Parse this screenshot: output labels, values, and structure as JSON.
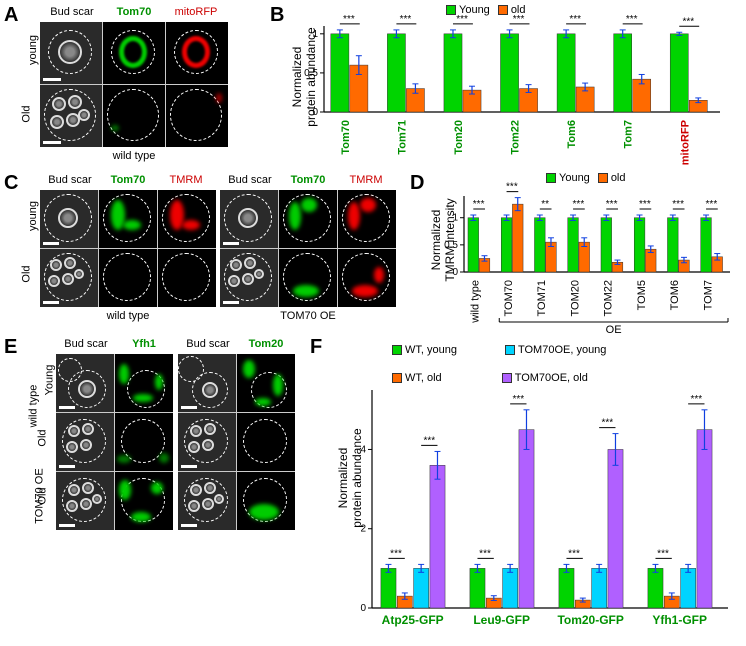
{
  "colors": {
    "young": "#00d400",
    "old": "#ff6a00",
    "t70y": "#00d4ff",
    "t70o": "#b060ff",
    "error": "#1040e0",
    "green_text": "#009000",
    "red_text": "#cc0000",
    "axis": "#000000"
  },
  "panelA": {
    "label": "A",
    "headers": [
      "Bud scar",
      "Tom70",
      "mitoRFP"
    ],
    "header_colors": [
      "#000000",
      "#009000",
      "#cc0000"
    ],
    "rows": [
      "young",
      "Old"
    ],
    "under": "wild type"
  },
  "panelB": {
    "label": "B",
    "ylabel": "Normalized\nprotein abundance",
    "legend": [
      {
        "label": "Young",
        "color": "young"
      },
      {
        "label": "old",
        "color": "old"
      }
    ],
    "ylim": [
      0,
      1.1
    ],
    "ytick_step": 0.5,
    "categories": [
      "Tom70",
      "Tom71",
      "Tom20",
      "Tom22",
      "Tom6",
      "Tom7",
      "mitoRFP"
    ],
    "cat_colors": [
      "#009000",
      "#009000",
      "#009000",
      "#009000",
      "#009000",
      "#009000",
      "#cc0000"
    ],
    "young": [
      1.0,
      1.0,
      1.0,
      1.0,
      1.0,
      1.0,
      1.0
    ],
    "young_err": [
      0.05,
      0.05,
      0.05,
      0.05,
      0.05,
      0.05,
      0.02
    ],
    "old": [
      0.6,
      0.3,
      0.28,
      0.3,
      0.32,
      0.42,
      0.15
    ],
    "old_err": [
      0.12,
      0.06,
      0.05,
      0.05,
      0.05,
      0.06,
      0.03
    ],
    "sig": [
      "***",
      "***",
      "***",
      "***",
      "***",
      "***",
      "***"
    ]
  },
  "panelC": {
    "label": "C",
    "headers": [
      "Bud scar",
      "Tom70",
      "TMRM",
      "Bud scar",
      "Tom70",
      "TMRM"
    ],
    "header_colors": [
      "#000000",
      "#009000",
      "#cc0000",
      "#000000",
      "#009000",
      "#cc0000"
    ],
    "rows": [
      "young",
      "Old"
    ],
    "under": [
      "wild type",
      "TOM70 OE"
    ]
  },
  "panelD": {
    "label": "D",
    "ylabel": "Normalized\nTMRM intensity",
    "legend": [
      {
        "label": "Young",
        "color": "young"
      },
      {
        "label": "old",
        "color": "old"
      }
    ],
    "ylim": [
      0,
      1.4
    ],
    "ytick_step": 0.5,
    "categories": [
      "wild type",
      "TOM70",
      "TOM71",
      "TOM20",
      "TOM22",
      "TOM5",
      "TOM6",
      "TOM7"
    ],
    "young": [
      1.0,
      1.0,
      1.0,
      1.0,
      1.0,
      1.0,
      1.0,
      1.0
    ],
    "young_err": [
      0.05,
      0.05,
      0.05,
      0.05,
      0.05,
      0.05,
      0.05,
      0.05
    ],
    "old": [
      0.25,
      1.25,
      0.55,
      0.55,
      0.18,
      0.42,
      0.22,
      0.28
    ],
    "old_err": [
      0.05,
      0.12,
      0.08,
      0.08,
      0.04,
      0.06,
      0.05,
      0.06
    ],
    "sig": [
      "***",
      "***",
      "**",
      "***",
      "***",
      "***",
      "***",
      "***"
    ],
    "oe_label": "OE"
  },
  "panelE": {
    "label": "E",
    "headers": [
      "Bud scar",
      "Yfh1",
      "Bud scar",
      "Tom20"
    ],
    "header_colors": [
      "#000000",
      "#009000",
      "#000000",
      "#009000"
    ],
    "rows_major": [
      "wild type",
      "TOM70 OE"
    ],
    "rows_minor": [
      "Young",
      "Old",
      "Old"
    ]
  },
  "panelF": {
    "label": "F",
    "ylabel": "Normalized\nprotein abundance",
    "legend": [
      {
        "label": "WT, young",
        "color": "young"
      },
      {
        "label": "WT, old",
        "color": "old"
      },
      {
        "label": "TOM70OE, young",
        "color": "t70y"
      },
      {
        "label": "TOM70OE, old",
        "color": "t70o"
      }
    ],
    "ylim": [
      0,
      5.5
    ],
    "yticks": [
      0,
      2,
      4
    ],
    "categories": [
      "Atp25-GFP",
      "Leu9-GFP",
      "Tom20-GFP",
      "Yfh1-GFP"
    ],
    "series": {
      "wt_young": [
        1.0,
        1.0,
        1.0,
        1.0
      ],
      "wt_old": [
        0.3,
        0.25,
        0.2,
        0.3
      ],
      "oe_young": [
        1.0,
        1.0,
        1.0,
        1.0
      ],
      "oe_old": [
        3.6,
        4.5,
        4.0,
        4.5
      ]
    },
    "err": {
      "wt_young": [
        0.1,
        0.1,
        0.1,
        0.1
      ],
      "wt_old": [
        0.08,
        0.06,
        0.05,
        0.08
      ],
      "oe_young": [
        0.1,
        0.1,
        0.1,
        0.1
      ],
      "oe_old": [
        0.35,
        0.5,
        0.4,
        0.5
      ]
    },
    "sig_low": [
      "***",
      "***",
      "***",
      "***"
    ],
    "sig_high": [
      "***",
      "***",
      "***",
      "***"
    ]
  }
}
